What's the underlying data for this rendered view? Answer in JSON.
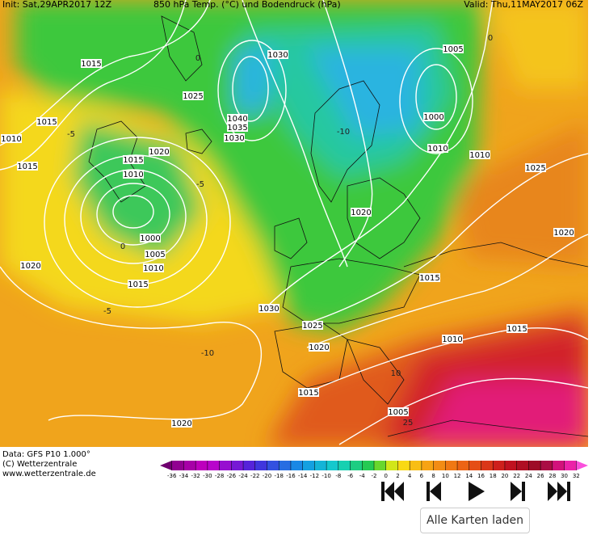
{
  "header": {
    "init": "Init: Sat,29APR2017 12Z",
    "title": "850 hPa Temp. (°C) und Bodendruck (hPa)",
    "valid": "Valid: Thu,11MAY2017 06Z"
  },
  "isobar_labels": [
    "1015",
    "1025",
    "1030",
    "1040",
    "1035",
    "1030",
    "1015",
    "1010",
    "1015",
    "1020",
    "1015",
    "1010",
    "1000",
    "1005",
    "1010",
    "1015",
    "1020",
    "1030",
    "1025",
    "1020",
    "1015",
    "1020",
    "1005",
    "1010",
    "1015",
    "1015",
    "1020",
    "1025",
    "1010",
    "1010",
    "1000",
    "1005",
    "1020"
  ],
  "temperature_labels": [
    "0",
    "0",
    "-5",
    "-10",
    "-5",
    "-10",
    "0",
    "-5",
    "10",
    "25"
  ],
  "colorbar": {
    "labels": [
      -36,
      -34,
      -32,
      -30,
      -28,
      -26,
      -24,
      -22,
      -20,
      -18,
      -16,
      -14,
      -12,
      -10,
      -8,
      -6,
      -4,
      -2,
      0,
      2,
      4,
      6,
      8,
      10,
      12,
      14,
      16,
      18,
      20,
      22,
      24,
      26,
      28,
      30,
      32
    ]
  },
  "credits": [
    "Data: GFS P10 1.000°",
    "(C) Wetterzentrale",
    "www.wetterzentrale.de"
  ],
  "button": "Alle Karten laden"
}
